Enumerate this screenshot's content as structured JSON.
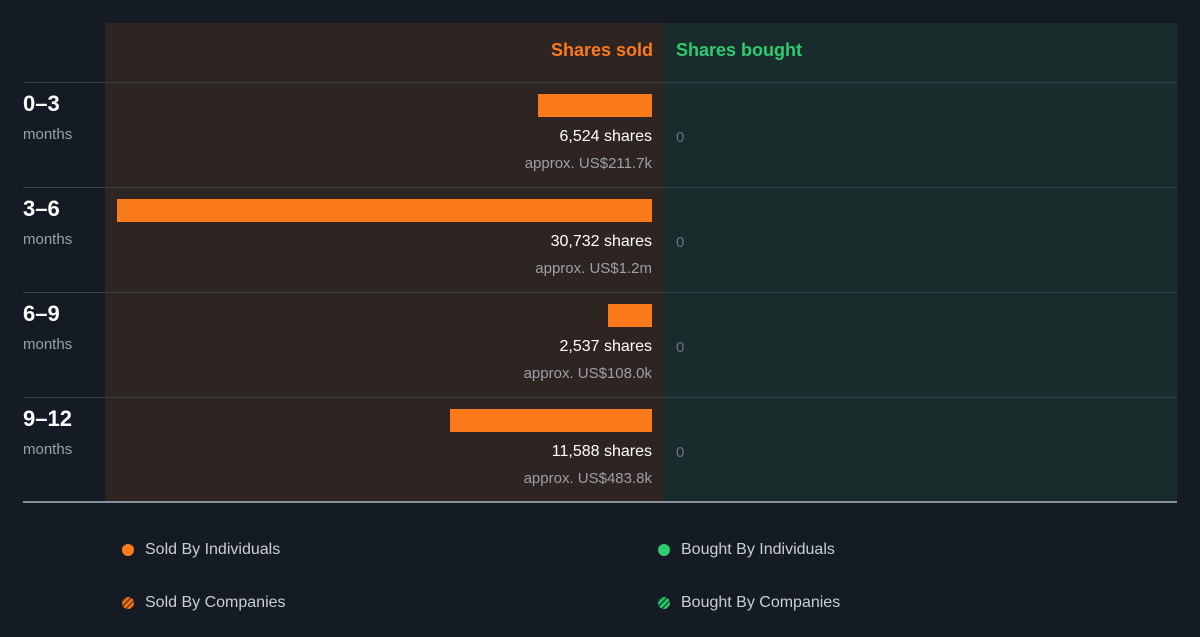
{
  "colors": {
    "sold": "#fa7a1c",
    "bought": "#2ecc71",
    "sold_stripe_dark": "#8a3f0a",
    "bought_stripe_dark": "#14663a"
  },
  "header": {
    "sold_label": "Shares sold",
    "bought_label": "Shares bought"
  },
  "rows": [
    {
      "period": "0–3",
      "unit": "months",
      "sold_shares": "6,524 shares",
      "sold_value": "approx. US$211.7k",
      "bought": "0"
    },
    {
      "period": "3–6",
      "unit": "months",
      "sold_shares": "30,732 shares",
      "sold_value": "approx. US$1.2m",
      "bought": "0"
    },
    {
      "period": "6–9",
      "unit": "months",
      "sold_shares": "2,537 shares",
      "sold_value": "approx. US$108.0k",
      "bought": "0"
    },
    {
      "period": "9–12",
      "unit": "months",
      "sold_shares": "11,588 shares",
      "sold_value": "approx. US$483.8k",
      "bought": "0"
    }
  ],
  "legend": {
    "sold_individuals": "Sold By Individuals",
    "bought_individuals": "Bought By Individuals",
    "sold_companies": "Sold By Companies",
    "bought_companies": "Bought By Companies"
  },
  "chart_data": {
    "type": "bar",
    "categories": [
      "0–3 months",
      "3–6 months",
      "6–9 months",
      "9–12 months"
    ],
    "series": [
      {
        "name": "Shares sold",
        "values": [
          6524,
          30732,
          2537,
          11588
        ]
      },
      {
        "name": "Shares bought",
        "values": [
          0,
          0,
          0,
          0
        ]
      }
    ],
    "value_labels": [
      "approx. US$211.7k",
      "approx. US$1.2m",
      "approx. US$108.0k",
      "approx. US$483.8k"
    ],
    "legend_position": "bottom"
  }
}
